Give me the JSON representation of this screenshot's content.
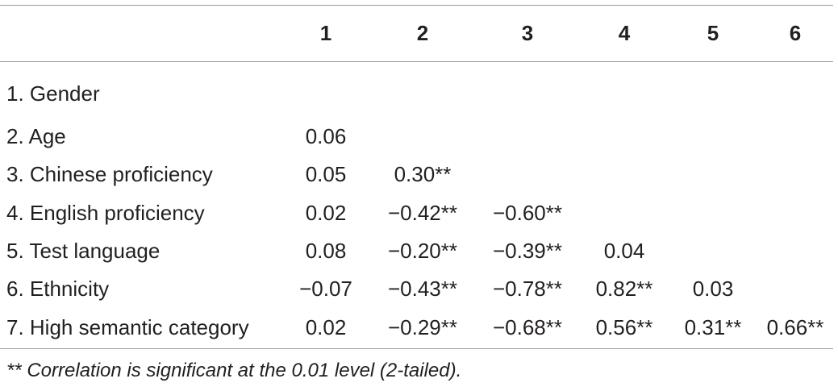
{
  "table": {
    "column_headers": [
      "",
      "1",
      "2",
      "3",
      "4",
      "5",
      "6"
    ],
    "rows": [
      {
        "label": "1. Gender",
        "cells": [
          "",
          "",
          "",
          "",
          "",
          ""
        ]
      },
      {
        "label": "2. Age",
        "cells": [
          "0.06",
          "",
          "",
          "",
          "",
          ""
        ]
      },
      {
        "label": "3. Chinese proficiency",
        "cells": [
          "0.05",
          "0.30**",
          "",
          "",
          "",
          ""
        ]
      },
      {
        "label": "4. English proficiency",
        "cells": [
          "0.02",
          "−0.42**",
          "−0.60**",
          "",
          "",
          ""
        ]
      },
      {
        "label": "5. Test language",
        "cells": [
          "0.08",
          "−0.20**",
          "−0.39**",
          "0.04",
          "",
          ""
        ]
      },
      {
        "label": "6. Ethnicity",
        "cells": [
          "−0.07",
          "−0.43**",
          "−0.78**",
          "0.82**",
          "0.03",
          ""
        ]
      },
      {
        "label": "7. High semantic category",
        "cells": [
          "0.02",
          "−0.29**",
          "−0.68**",
          "0.56**",
          "0.31**",
          "0.66**"
        ]
      }
    ]
  },
  "footnote": "** Correlation is significant at the 0.01 level (2-tailed)."
}
